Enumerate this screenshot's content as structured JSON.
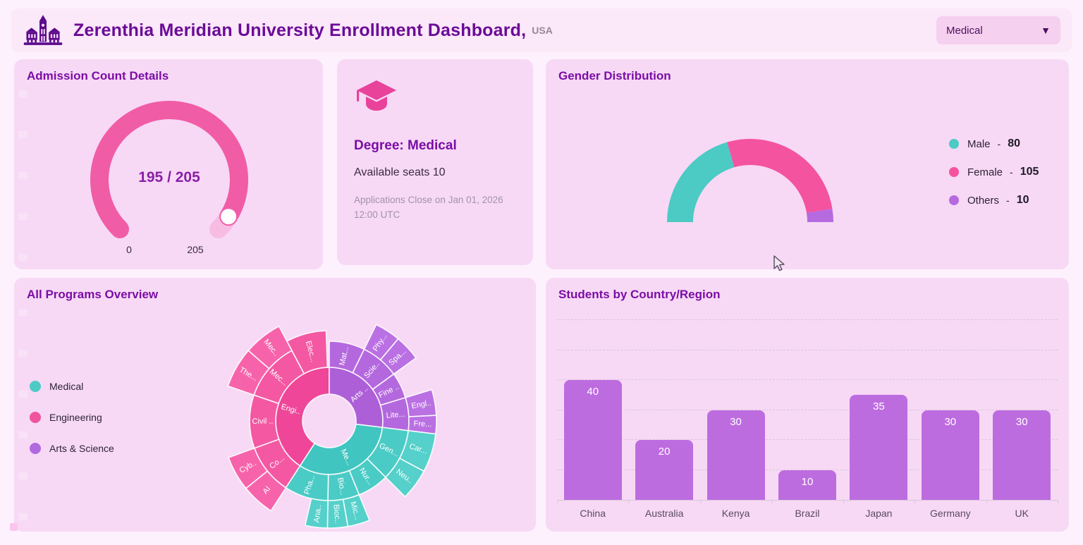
{
  "colors": {
    "teal": "#4ccac4",
    "pink": "#f4539f",
    "purple": "#b56ae0",
    "bar": "#bd6ce0",
    "gauge_fill": "#f15ca7",
    "gauge_track": "#f8bce2",
    "title_purple": "#7b0da6"
  },
  "header": {
    "logo": "university-building-icon",
    "title": "Zerenthia Meridian University Enrollment Dashboard,",
    "region": "USA",
    "degree_dropdown": {
      "value": "Medical"
    }
  },
  "admission": {
    "title": "Admission Count Details",
    "gauge": {
      "value": 195,
      "max": 205,
      "display": "195 / 205",
      "min_label": "0",
      "max_label": "205"
    }
  },
  "degree": {
    "icon": "graduation-cap-icon",
    "title": "Degree: Medical",
    "seats": "Available seats 10",
    "closing": "Applications Close on Jan 01, 2026 12:00 UTC"
  },
  "gender": {
    "title": "Gender Distribution",
    "separator": "-",
    "segments": [
      {
        "label": "Male",
        "value": 80,
        "color": "#4ccac4"
      },
      {
        "label": "Female",
        "value": 105,
        "color": "#f4539f"
      },
      {
        "label": "Others",
        "value": 10,
        "color": "#b56ae0"
      }
    ]
  },
  "programs": {
    "title": "All Programs Overview",
    "legend": [
      {
        "label": "Medical",
        "color": "#4ccac4"
      },
      {
        "label": "Engineering",
        "color": "#f1549e"
      },
      {
        "label": "Arts & Science",
        "color": "#b169e0"
      }
    ],
    "sunburst": [
      {
        "label": "Engi..",
        "ring": 1,
        "a0": 213,
        "a1": 360,
        "color": "#ef4699"
      },
      {
        "label": "Arts ..",
        "ring": 1,
        "a0": 0,
        "a1": 97,
        "color": "#ad5fd8"
      },
      {
        "label": "Me...",
        "ring": 1,
        "a0": 97,
        "a1": 213,
        "color": "#41c5c0"
      },
      {
        "label": "Co...",
        "ring": 2,
        "a0": 213,
        "a1": 250,
        "color": "#f458a3"
      },
      {
        "label": "Civil ..",
        "ring": 2,
        "a0": 250,
        "a1": 289,
        "color": "#f458a3"
      },
      {
        "label": "Mec...",
        "ring": 2,
        "a0": 289,
        "a1": 332,
        "color": "#f458a3"
      },
      {
        "label": "Elec...",
        "ring": 2,
        "a0": 332,
        "a1": 358,
        "color": "#f458a3",
        "r_out": 128
      },
      {
        "label": "Mat...",
        "ring": 2,
        "a0": 0,
        "a1": 26,
        "color": "#b468de"
      },
      {
        "label": "Scie..",
        "ring": 2,
        "a0": 26,
        "a1": 54,
        "color": "#b468de"
      },
      {
        "label": "Fine ..",
        "ring": 2,
        "a0": 54,
        "a1": 73,
        "color": "#b468de"
      },
      {
        "label": "Lite...",
        "ring": 2,
        "a0": 73,
        "a1": 97,
        "color": "#b468de"
      },
      {
        "label": "Gen...",
        "ring": 2,
        "a0": 97,
        "a1": 135,
        "color": "#4bcbc5"
      },
      {
        "label": "Nur...",
        "ring": 2,
        "a0": 135,
        "a1": 158,
        "color": "#4bcbc5"
      },
      {
        "label": "Bio...",
        "ring": 2,
        "a0": 158,
        "a1": 181,
        "color": "#4bcbc5"
      },
      {
        "label": "Pha...",
        "ring": 2,
        "a0": 181,
        "a1": 213,
        "color": "#4bcbc5"
      },
      {
        "label": "AI",
        "ring": 3,
        "a0": 213,
        "a1": 231,
        "color": "#f763ab"
      },
      {
        "label": "Cyb..",
        "ring": 3,
        "a0": 231,
        "a1": 250,
        "color": "#f763ab"
      },
      {
        "label": "The...",
        "ring": 3,
        "a0": 289,
        "a1": 311,
        "color": "#f763ab"
      },
      {
        "label": "Mec..",
        "ring": 3,
        "a0": 311,
        "a1": 332,
        "color": "#f763ab"
      },
      {
        "label": "Phy...",
        "ring": 3,
        "a0": 26,
        "a1": 40,
        "color": "#ba70e3"
      },
      {
        "label": "Spa...",
        "ring": 3,
        "a0": 40,
        "a1": 54,
        "color": "#ba70e3"
      },
      {
        "label": "Engl..",
        "ring": 3,
        "a0": 73,
        "a1": 87,
        "color": "#ba70e3"
      },
      {
        "label": "Fre...",
        "ring": 3,
        "a0": 87,
        "a1": 97,
        "color": "#ba70e3"
      },
      {
        "label": "Car...",
        "ring": 3,
        "a0": 97,
        "a1": 118,
        "color": "#55d0ca"
      },
      {
        "label": "Neu..",
        "ring": 3,
        "a0": 118,
        "a1": 135,
        "color": "#55d0ca"
      },
      {
        "label": "Mic...",
        "ring": 3,
        "a0": 158,
        "a1": 170,
        "color": "#55d0ca"
      },
      {
        "label": "Bioc..",
        "ring": 3,
        "a0": 170,
        "a1": 181,
        "color": "#55d0ca"
      },
      {
        "label": "Ana..",
        "ring": 3,
        "a0": 181,
        "a1": 193,
        "color": "#55d0ca"
      }
    ]
  },
  "students": {
    "title": "Students by Country/Region",
    "categories": [
      "China",
      "Australia",
      "Kenya",
      "Brazil",
      "Japan",
      "Germany",
      "UK"
    ],
    "values": [
      40,
      20,
      30,
      10,
      35,
      30,
      30
    ],
    "ymax": 60,
    "grid_step": 10
  },
  "chart_data": [
    {
      "type": "gauge",
      "title": "Admission Count Details",
      "value": 195,
      "max": 205,
      "min": 0,
      "center_label": "195 / 205",
      "axis_labels": [
        "0",
        "205"
      ]
    },
    {
      "type": "pie",
      "subtype": "half-donut",
      "title": "Gender Distribution",
      "labels": [
        "Male",
        "Female",
        "Others"
      ],
      "values": [
        80,
        105,
        10
      ],
      "colors": [
        "#4ccac4",
        "#f4539f",
        "#b56ae0"
      ],
      "legend_position": "right"
    },
    {
      "type": "sunburst",
      "title": "All Programs Overview",
      "legend": [
        "Medical",
        "Engineering",
        "Arts & Science"
      ],
      "tree": [
        {
          "name": "Engi..",
          "children": [
            {
              "name": "Co...",
              "children": [
                {
                  "name": "AI"
                },
                {
                  "name": "Cyb.."
                }
              ]
            },
            {
              "name": "Civil .."
            },
            {
              "name": "Mec...",
              "children": [
                {
                  "name": "The..."
                },
                {
                  "name": "Mec.."
                }
              ]
            },
            {
              "name": "Elec..."
            }
          ]
        },
        {
          "name": "Arts ..",
          "children": [
            {
              "name": "Mat..."
            },
            {
              "name": "Scie..",
              "children": [
                {
                  "name": "Phy..."
                },
                {
                  "name": "Spa..."
                }
              ]
            },
            {
              "name": "Fine .."
            },
            {
              "name": "Lite...",
              "children": [
                {
                  "name": "Engl.."
                },
                {
                  "name": "Fre..."
                }
              ]
            }
          ]
        },
        {
          "name": "Me...",
          "children": [
            {
              "name": "Gen...",
              "children": [
                {
                  "name": "Car..."
                },
                {
                  "name": "Neu.."
                }
              ]
            },
            {
              "name": "Nur..."
            },
            {
              "name": "Bio...",
              "children": [
                {
                  "name": "Mic..."
                },
                {
                  "name": "Bioc.."
                }
              ]
            },
            {
              "name": "Pha...",
              "children": [
                {
                  "name": "Ana.."
                }
              ]
            }
          ]
        }
      ]
    },
    {
      "type": "bar",
      "title": "Students by Country/Region",
      "categories": [
        "China",
        "Australia",
        "Kenya",
        "Brazil",
        "Japan",
        "Germany",
        "UK"
      ],
      "values": [
        40,
        20,
        30,
        10,
        35,
        30,
        30
      ],
      "xlabel": "",
      "ylabel": "",
      "ylim": [
        0,
        60
      ],
      "grid": "dashed-horizontal",
      "bar_color": "#bd6ce0"
    }
  ]
}
